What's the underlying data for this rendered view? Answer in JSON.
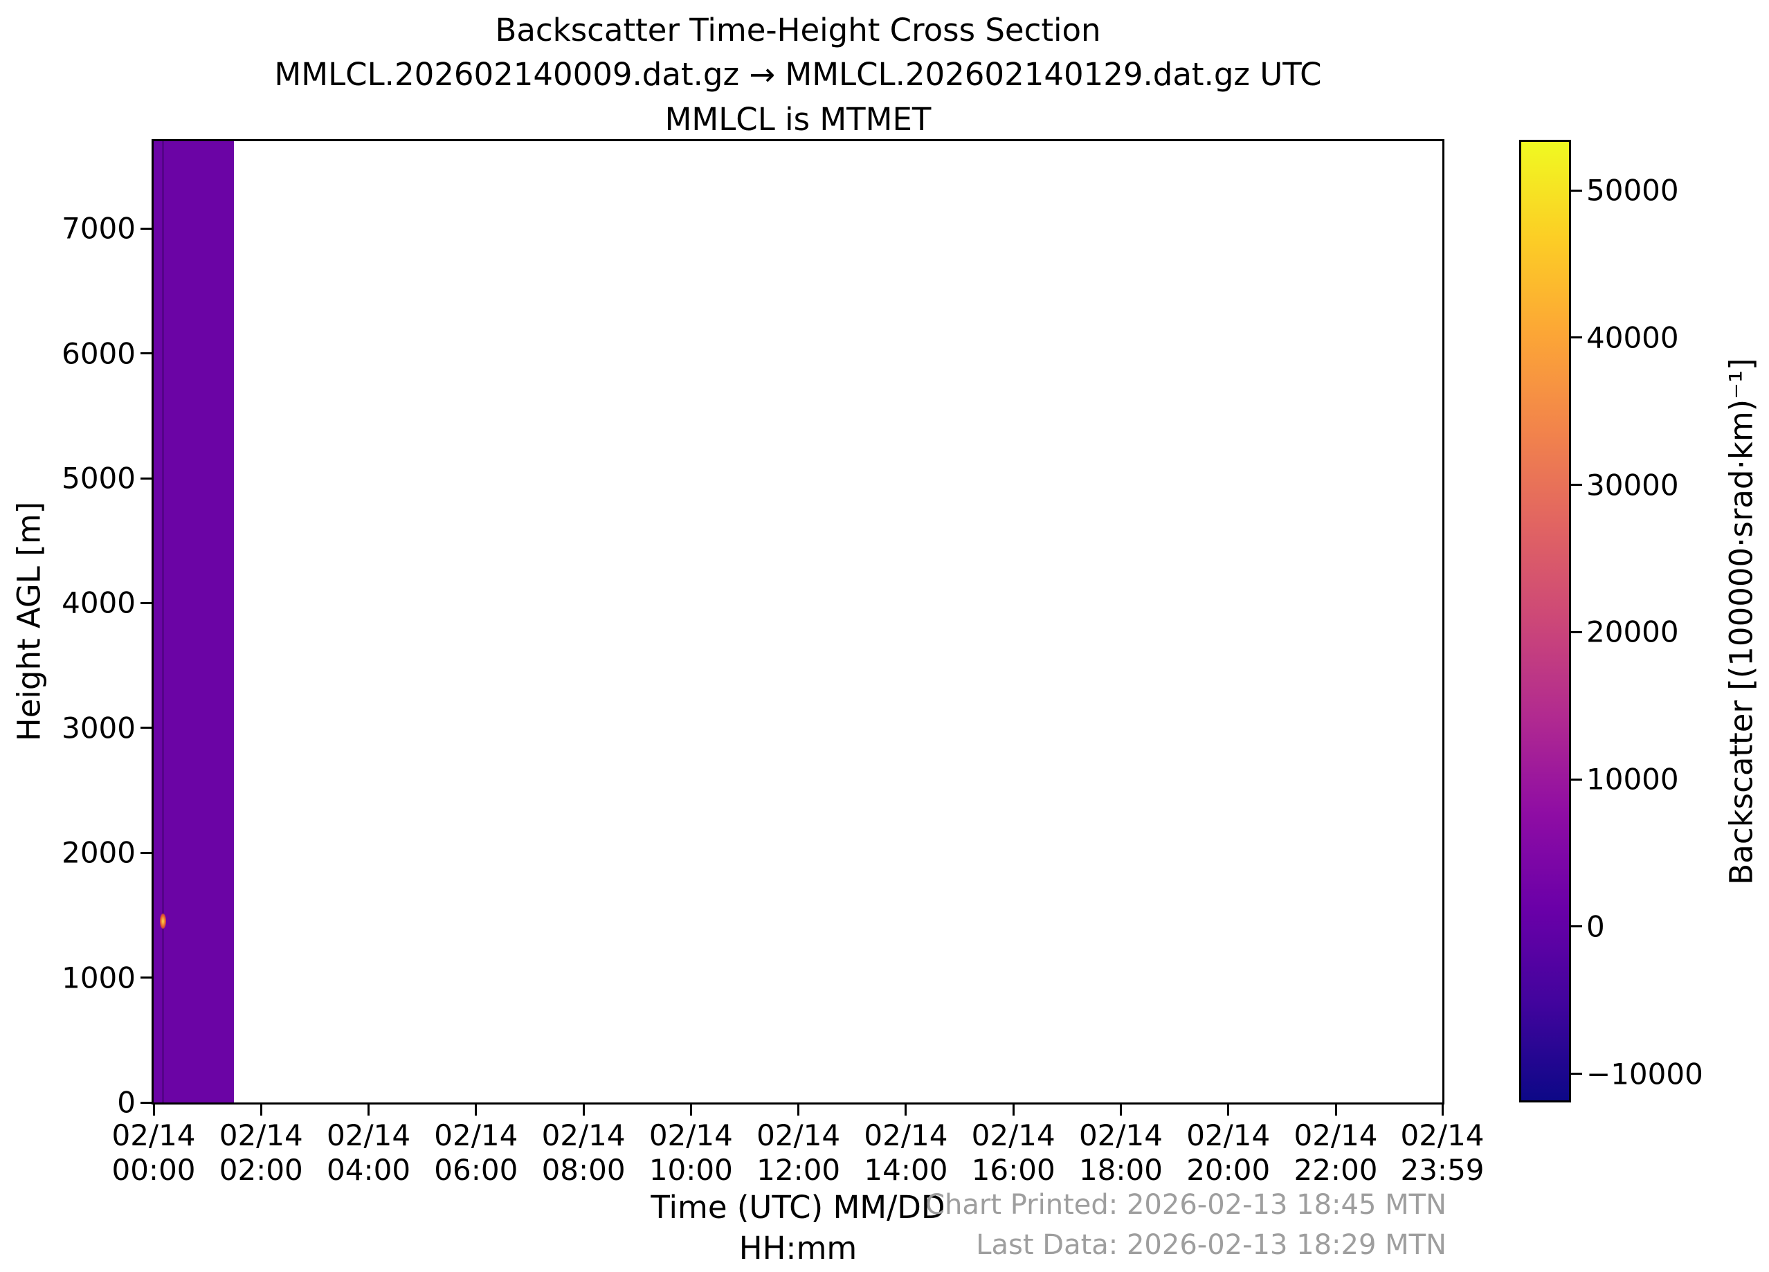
{
  "figure": {
    "title_line1": "Backscatter Time-Height Cross Section",
    "title_line2": "MMLCL.202602140009.dat.gz → MMLCL.202602140129.dat.gz UTC",
    "title_line3": "MMLCL is MTMET",
    "footer_printed": "Chart Printed: 2026-02-13 18:45 MTN",
    "footer_last_data": "Last Data: 2026-02-13 18:29 MTN",
    "footer_color": "#9e9e9e",
    "spine_color": "#000000",
    "background_color": "#ffffff"
  },
  "chart_data": {
    "type": "heatmap",
    "title": "Backscatter Time-Height Cross Section",
    "subtitle": "MMLCL.202602140009.dat.gz → MMLCL.202602140129.dat.gz UTC",
    "subtitle2": "MMLCL is MTMET",
    "xlabel_line1": "Time (UTC) MM/DD",
    "xlabel_line2": "HH:mm",
    "ylabel": "Height AGL [m]",
    "xlim_minutes": [
      0,
      1439
    ],
    "ylim_m": [
      0,
      7700
    ],
    "grid": false,
    "x_ticks": [
      {
        "minutes": 0,
        "line1": "02/14",
        "line2": "00:00"
      },
      {
        "minutes": 120,
        "line1": "02/14",
        "line2": "02:00"
      },
      {
        "minutes": 240,
        "line1": "02/14",
        "line2": "04:00"
      },
      {
        "minutes": 360,
        "line1": "02/14",
        "line2": "06:00"
      },
      {
        "minutes": 480,
        "line1": "02/14",
        "line2": "08:00"
      },
      {
        "minutes": 600,
        "line1": "02/14",
        "line2": "10:00"
      },
      {
        "minutes": 720,
        "line1": "02/14",
        "line2": "12:00"
      },
      {
        "minutes": 840,
        "line1": "02/14",
        "line2": "14:00"
      },
      {
        "minutes": 960,
        "line1": "02/14",
        "line2": "16:00"
      },
      {
        "minutes": 1080,
        "line1": "02/14",
        "line2": "18:00"
      },
      {
        "minutes": 1200,
        "line1": "02/14",
        "line2": "20:00"
      },
      {
        "minutes": 1320,
        "line1": "02/14",
        "line2": "22:00"
      },
      {
        "minutes": 1439,
        "line1": "02/14",
        "line2": "23:59"
      }
    ],
    "y_ticks": [
      {
        "value": 0,
        "label": "0"
      },
      {
        "value": 1000,
        "label": "1000"
      },
      {
        "value": 2000,
        "label": "2000"
      },
      {
        "value": 3000,
        "label": "3000"
      },
      {
        "value": 4000,
        "label": "4000"
      },
      {
        "value": 5000,
        "label": "5000"
      },
      {
        "value": 6000,
        "label": "6000"
      },
      {
        "value": 7000,
        "label": "7000"
      }
    ],
    "colorbar": {
      "label": "Backscatter [(100000·srad·km)⁻¹]",
      "range": [
        -11800,
        53300
      ],
      "ticks": [
        {
          "value": 50000,
          "label": "50000"
        },
        {
          "value": 40000,
          "label": "40000"
        },
        {
          "value": 30000,
          "label": "30000"
        },
        {
          "value": 20000,
          "label": "20000"
        },
        {
          "value": 10000,
          "label": "10000"
        },
        {
          "value": 0,
          "label": "0"
        },
        {
          "value": -10000,
          "label": "−10000"
        }
      ],
      "colormap": "plasma",
      "stops": [
        {
          "t": 0.0,
          "color": "#0d0887"
        },
        {
          "t": 0.1,
          "color": "#41049d"
        },
        {
          "t": 0.2,
          "color": "#6a00a8"
        },
        {
          "t": 0.3,
          "color": "#8f0da4"
        },
        {
          "t": 0.4,
          "color": "#b12a90"
        },
        {
          "t": 0.5,
          "color": "#cc4778"
        },
        {
          "t": 0.6,
          "color": "#e16462"
        },
        {
          "t": 0.7,
          "color": "#f2844b"
        },
        {
          "t": 0.8,
          "color": "#fca636"
        },
        {
          "t": 0.9,
          "color": "#fcce25"
        },
        {
          "t": 1.0,
          "color": "#f0f921"
        }
      ]
    },
    "data_block": {
      "start_minutes": 0,
      "end_minutes": 90,
      "fill_color": "#6b04a5",
      "note": "near-zero backscatter over full height, 00:00–01:30 UTC; rest of day has no data (white)"
    },
    "plume": {
      "time_minutes": 10,
      "height_m": 1450,
      "peak_value_approx": 45000,
      "core_color": "#ffe14a",
      "edge_color": "#e4572e"
    }
  }
}
